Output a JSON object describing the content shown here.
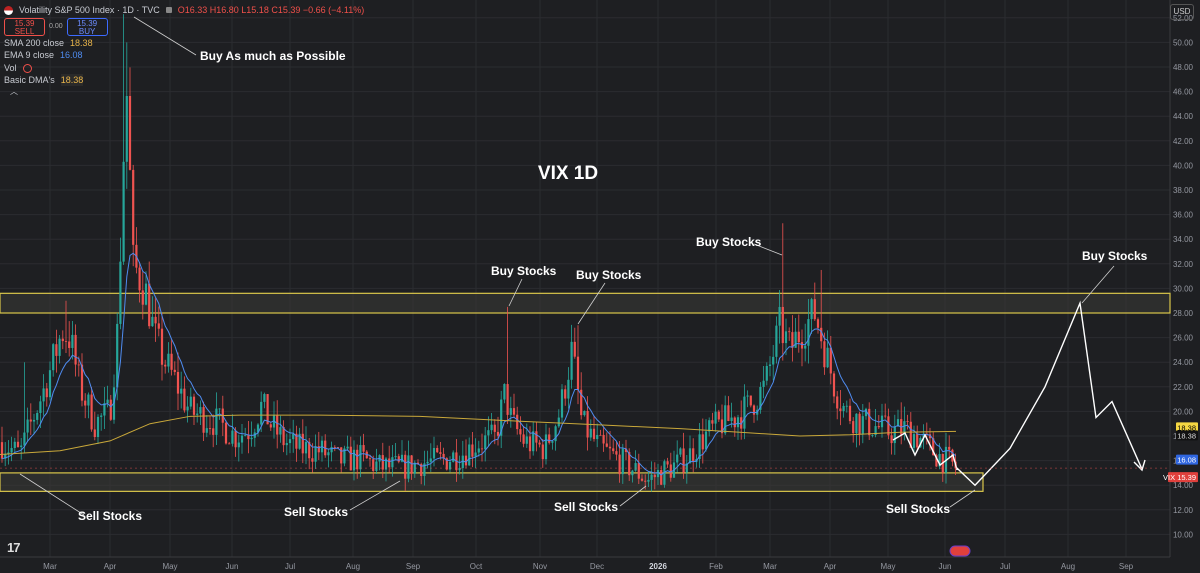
{
  "header": {
    "symbol": "Volatility S&P 500 Index · 1D · TVC",
    "ohlc": "O16.33  H16.80  L15.18  C15.39  −0.66 (−4.11%)",
    "sell_price": "15.39",
    "sell_label": "SELL",
    "spread": "0.00",
    "buy_price": "15.39",
    "buy_label": "BUY"
  },
  "indicators": [
    {
      "name": "SMA 200 close",
      "value": "18.38"
    },
    {
      "name": "EMA 9 close",
      "value": "16.08"
    },
    {
      "name": "Vol",
      "value": ""
    },
    {
      "name": "Basic DMA's",
      "value": "18.38"
    }
  ],
  "currency": "USD",
  "logo": "17",
  "chart_data": {
    "type": "candlestick",
    "title": "VIX 1D",
    "ylim": [
      9,
      53
    ],
    "y_ticks": [
      "52.00",
      "50.00",
      "48.00",
      "46.00",
      "44.00",
      "42.00",
      "40.00",
      "38.00",
      "36.00",
      "34.00",
      "32.00",
      "30.00",
      "28.00",
      "26.00",
      "24.00",
      "22.00",
      "20.00",
      "18.00",
      "16.00",
      "14.00",
      "12.00",
      "10.00"
    ],
    "x_ticks": [
      "Mar",
      "Apr",
      "May",
      "Jun",
      "Jul",
      "Aug",
      "Sep",
      "Oct",
      "Nov",
      "Dec",
      "2026",
      "Feb",
      "Mar",
      "Apr",
      "May",
      "Jun",
      "Jul",
      "Aug",
      "Sep"
    ],
    "zones": [
      {
        "from": 28.0,
        "to": 29.6
      },
      {
        "from": 13.5,
        "to": 15.0
      }
    ],
    "price_labels": [
      {
        "value": 18.38,
        "text": "18.38",
        "style": "yellow"
      },
      {
        "value": 18.38,
        "text": "18.38",
        "style": "dark"
      },
      {
        "value": 16.08,
        "text": "16.08",
        "style": "blue"
      },
      {
        "value": 15.39,
        "text": "VIX  15.39",
        "style": "red"
      }
    ],
    "annotations": [
      "Buy As much as Possible",
      "Buy Stocks",
      "Buy Stocks",
      "Buy Stocks",
      "Buy Stocks",
      "Sell Stocks",
      "Sell Stocks",
      "Sell Stocks",
      "Sell Stocks"
    ],
    "key_closes": [
      {
        "date": "2025-04",
        "close": 52.3
      },
      {
        "date": "2025-10",
        "close": 28.5
      },
      {
        "date": "2025-11",
        "close": 27.0
      },
      {
        "date": "2026-03",
        "close": 35.3
      },
      {
        "date": "2026-06",
        "close": 15.39
      }
    ],
    "projection": [
      15.39,
      14.0,
      17.0,
      22.0,
      28.8,
      19.5,
      20.8,
      15.3
    ]
  }
}
